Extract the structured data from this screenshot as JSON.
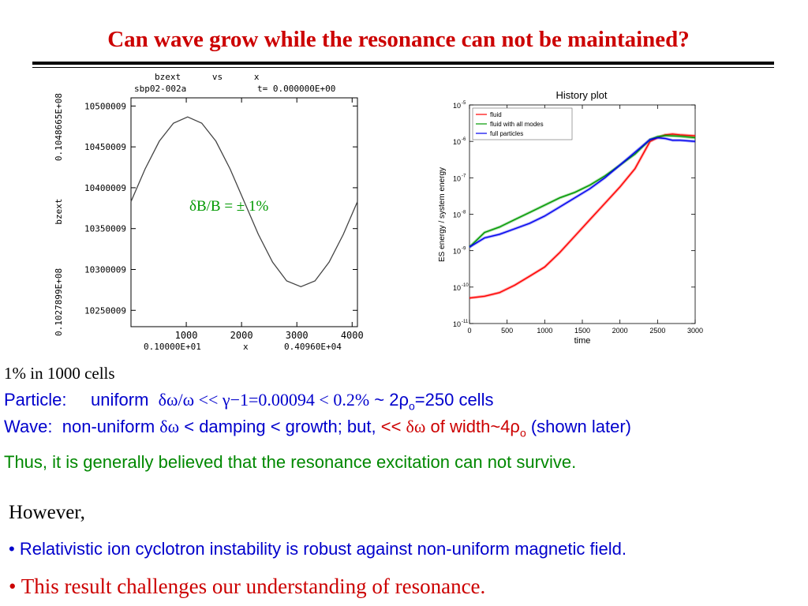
{
  "title": "Can wave grow while the resonance can not be maintained?",
  "left_plot": {
    "header_1": "bzext      vs      x",
    "header_2": "sbp02-002a",
    "header_3": "t=  0.000000E+00",
    "ylabel_top": "0.1048665E+08",
    "ylabel_mid": "bzext",
    "ylabel_bottom": "0.1027899E+08",
    "x_min_label": "0.10000E+01",
    "xlabel": "x",
    "x_max_label": "0.40960E+04",
    "annotation": "δB/B  = ± 1%",
    "annotation_color": "#009900",
    "chart_data": {
      "type": "line",
      "xlim": [
        0,
        4096
      ],
      "ylim": [
        10230000,
        10510000
      ],
      "x_ticks": [
        1000,
        2000,
        3000,
        4000
      ],
      "x_tick_labels": [
        "1000",
        "2000",
        "3000",
        "4000"
      ],
      "y_ticks": [
        10250009,
        10300009,
        10350009,
        10400009,
        10450009,
        10500009
      ],
      "y_tick_labels": [
        "10250009",
        "10300009",
        "10350009",
        "10400009",
        "10450009",
        "10500009"
      ],
      "series": [
        {
          "x": [
            0,
            256,
            512,
            768,
            1024,
            1280,
            1536,
            1792,
            2048,
            2304,
            2560,
            2816,
            3072,
            3328,
            3584,
            3840,
            4096
          ],
          "y": [
            10383000,
            10423000,
            10457000,
            10479000,
            10486600,
            10479000,
            10457000,
            10423000,
            10383000,
            10343000,
            10309000,
            10286000,
            10279000,
            10286000,
            10309000,
            10343000,
            10383000
          ]
        }
      ]
    }
  },
  "right_plot": {
    "chart_data": {
      "type": "line",
      "title": "History plot",
      "xlabel": "time",
      "ylabel": "ES energy / system energy",
      "xlim": [
        0,
        3000
      ],
      "ylim_log10": [
        -11,
        -5
      ],
      "x_ticks": [
        0,
        500,
        1000,
        1500,
        2000,
        2500,
        3000
      ],
      "x_tick_labels": [
        "0",
        "500",
        "1000",
        "1500",
        "2000",
        "2500",
        "3000"
      ],
      "y_ticks_log10": [
        -11,
        -10,
        -9,
        -8,
        -7,
        -6,
        -5
      ],
      "y_tick_base": "10",
      "y_tick_exponents": [
        "-11",
        "-10",
        "-9",
        "-8",
        "-7",
        "-6",
        "-5"
      ],
      "legend_position": "top-left",
      "series": [
        {
          "name": "fluid",
          "color": "#ff0000",
          "x": [
            0,
            200,
            400,
            600,
            800,
            1000,
            1200,
            1400,
            1600,
            1800,
            2000,
            2200,
            2400,
            2500,
            2600,
            2700,
            2800,
            3000
          ],
          "log10_y": [
            -10.3,
            -10.25,
            -10.15,
            -9.95,
            -9.7,
            -9.45,
            -9.05,
            -8.6,
            -8.15,
            -7.7,
            -7.25,
            -6.75,
            -6.0,
            -5.9,
            -5.82,
            -5.8,
            -5.82,
            -5.85
          ]
        },
        {
          "name": "fluid with all modes",
          "color": "#009900",
          "x": [
            0,
            200,
            400,
            600,
            800,
            1000,
            1200,
            1400,
            1600,
            1800,
            2000,
            2200,
            2400,
            2500,
            2600,
            2700,
            2800,
            3000
          ],
          "log10_y": [
            -8.9,
            -8.5,
            -8.35,
            -8.15,
            -7.95,
            -7.75,
            -7.55,
            -7.4,
            -7.2,
            -6.95,
            -6.65,
            -6.35,
            -5.95,
            -5.87,
            -5.84,
            -5.85,
            -5.86,
            -5.9
          ]
        },
        {
          "name": "full particles",
          "color": "#0000ee",
          "x": [
            0,
            200,
            400,
            600,
            800,
            1000,
            1200,
            1400,
            1600,
            1800,
            2000,
            2200,
            2400,
            2500,
            2600,
            2700,
            2800,
            3000
          ],
          "log10_y": [
            -8.9,
            -8.65,
            -8.55,
            -8.4,
            -8.25,
            -8.05,
            -7.8,
            -7.55,
            -7.3,
            -7.0,
            -6.65,
            -6.3,
            -5.95,
            -5.9,
            -5.92,
            -5.97,
            -5.97,
            -6.0
          ]
        }
      ]
    }
  },
  "text": {
    "line1": "1% in 1000 cells",
    "line2_a": "Particle:     uniform  ",
    "line2_b": "δω/ω << γ−1=0.00094 < 0.2%",
    "line2_c": " ~ 2ρ",
    "line2_sub": "o",
    "line2_d": "=250 cells",
    "line3_a": "Wave:  non-uniform ",
    "line3_b": "δω",
    "line3_c": " < damping < growth; but, ",
    "line3_d": "<< ",
    "line3_e": "δω",
    "line3_f": " of width~4ρ",
    "line3_sub": "o",
    "line3_g": " (shown later)",
    "line4": "Thus, it is generally believed that the resonance excitation can not survive.",
    "however": "However,",
    "bullet1": "• Relativistic ion cyclotron instability is robust against non-uniform magnetic field.",
    "bullet2": "• This result challenges our understanding of resonance."
  },
  "colors": {
    "title": "#cc0000",
    "blue_text": "#0000cc",
    "green_text": "#008800",
    "red_text": "#cc0000"
  }
}
